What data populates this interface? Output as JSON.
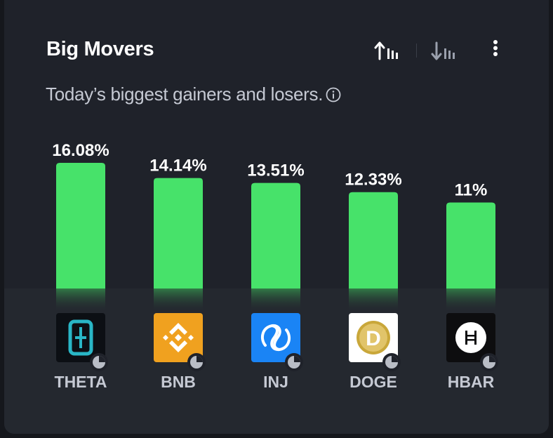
{
  "header": {
    "title": "Big Movers",
    "subtitle": "Today’s biggest gainers and losers.",
    "info_icon": "info-icon",
    "sort_up_icon": "sort-ascending-icon",
    "sort_down_icon": "sort-descending-icon",
    "menu_icon": "more-vertical-icon"
  },
  "colors": {
    "bar": "#47e26a",
    "background": "#1f222a"
  },
  "chart_data": {
    "type": "bar",
    "title": "Big Movers",
    "subtitle": "Today’s biggest gainers and losers.",
    "categories": [
      "THETA",
      "BNB",
      "INJ",
      "DOGE",
      "HBAR"
    ],
    "values": [
      16.08,
      14.14,
      13.51,
      12.33,
      11
    ],
    "data_labels": [
      "16.08%",
      "14.14%",
      "13.51%",
      "12.33%",
      "11%"
    ],
    "unit": "%",
    "ylim": [
      0,
      16.08
    ],
    "grid": false,
    "legend": "none"
  },
  "coins": [
    {
      "symbol": "THETA",
      "icon": "theta-logo-icon"
    },
    {
      "symbol": "BNB",
      "icon": "bnb-logo-icon"
    },
    {
      "symbol": "INJ",
      "icon": "injective-logo-icon"
    },
    {
      "symbol": "DOGE",
      "icon": "dogecoin-logo-icon"
    },
    {
      "symbol": "HBAR",
      "icon": "hbar-logo-icon"
    }
  ]
}
